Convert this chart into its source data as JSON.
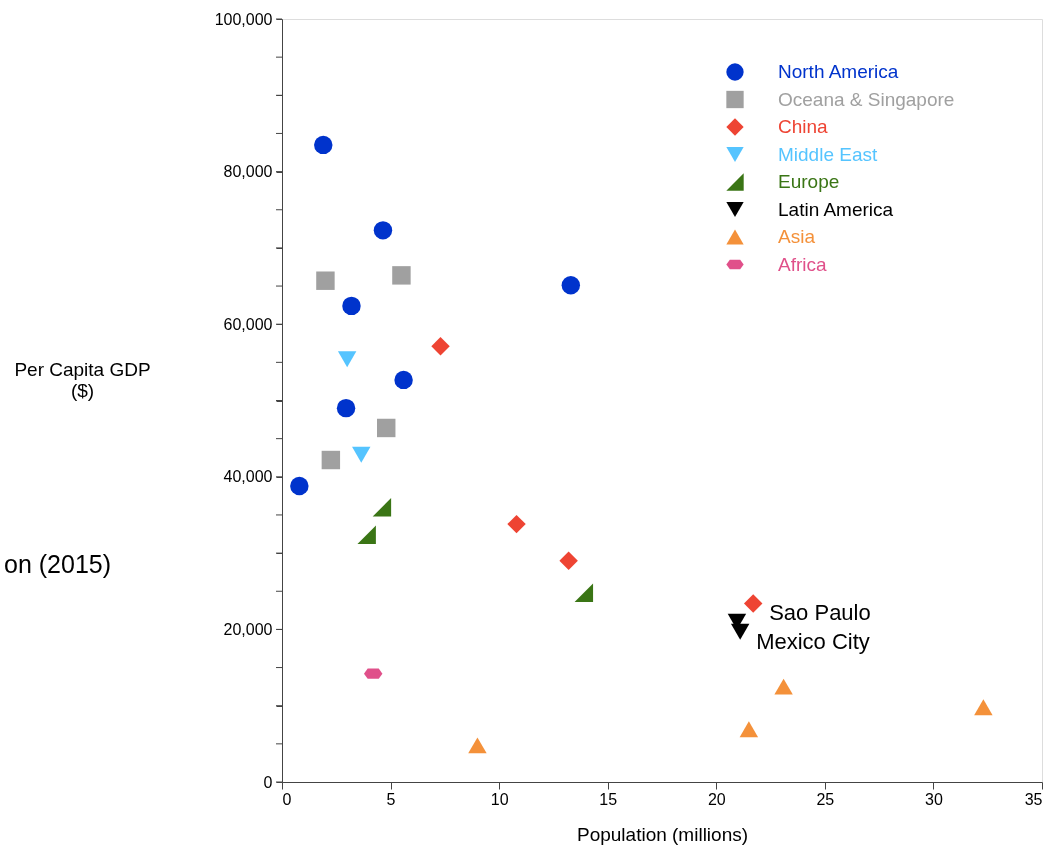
{
  "chart_data": {
    "type": "scatter",
    "xlabel": "Population (millions)",
    "ylabel": "Per Capita GDP ($)",
    "xlim": [
      0,
      35
    ],
    "xticks": [
      0,
      5,
      10,
      15,
      20,
      25,
      30,
      35
    ],
    "ylim": [
      0,
      100000
    ],
    "yticks": [
      {
        "value": 0,
        "label": "0"
      },
      {
        "value": 5000,
        "label": null
      },
      {
        "value": 10000,
        "label": null
      },
      {
        "value": 15000,
        "label": null
      },
      {
        "value": 20000,
        "label": "20,000"
      },
      {
        "value": 25000,
        "label": null
      },
      {
        "value": 30000,
        "label": null
      },
      {
        "value": 35000,
        "label": null
      },
      {
        "value": 40000,
        "label": "40,000"
      },
      {
        "value": 45000,
        "label": null
      },
      {
        "value": 50000,
        "label": null
      },
      {
        "value": 55000,
        "label": null
      },
      {
        "value": 60000,
        "label": "60,000"
      },
      {
        "value": 65000,
        "label": null
      },
      {
        "value": 70000,
        "label": null
      },
      {
        "value": 75000,
        "label": null
      },
      {
        "value": 80000,
        "label": "80,000"
      },
      {
        "value": 85000,
        "label": null
      },
      {
        "value": 90000,
        "label": null
      },
      {
        "value": 95000,
        "label": null
      },
      {
        "value": 100000,
        "label": "100,000"
      }
    ],
    "grid": false,
    "legend": "top right",
    "series": [
      {
        "name": "North America",
        "color": "#0033cc",
        "marker": "circle",
        "x": [
          1.9,
          4.65,
          3.2,
          13.3,
          5.6,
          2.95,
          0.8
        ],
        "values": [
          83500,
          72300,
          62400,
          65100,
          52700,
          49000,
          38800
        ]
      },
      {
        "name": "Oceana & Singapore",
        "color": "#a0a0a0",
        "marker": "square",
        "x": [
          2.0,
          5.5,
          4.8,
          2.25
        ],
        "values": [
          65700,
          66400,
          46400,
          42200
        ]
      },
      {
        "name": "China",
        "color": "#ee4433",
        "marker": "diamond",
        "x": [
          7.3,
          10.8,
          13.2,
          21.7
        ],
        "values": [
          57100,
          33800,
          29000,
          23400
        ]
      },
      {
        "name": "Middle East",
        "color": "#55c4ff",
        "marker": "triangle-down",
        "x": [
          3.0,
          3.65
        ],
        "values": [
          55400,
          42900
        ]
      },
      {
        "name": "Europe",
        "color": "#3a7515",
        "marker": "triangle",
        "x": [
          4.6,
          3.9,
          13.9
        ],
        "values": [
          36000,
          32400,
          24800
        ]
      },
      {
        "name": "Latin America",
        "color": "#000000",
        "marker": "triangle-down",
        "x": [
          20.95,
          21.1
        ],
        "values": [
          21000,
          19700
        ]
      },
      {
        "name": "Asia",
        "color": "#f4913a",
        "marker": "triangle-up",
        "x": [
          9.0,
          21.5,
          23.1,
          32.3
        ],
        "values": [
          4800,
          6900,
          12500,
          9800
        ]
      },
      {
        "name": "Africa",
        "color": "#e0508a",
        "x": [
          4.2
        ],
        "values": [
          14200
        ]
      }
    ],
    "annotations": [
      {
        "text": "Sao Paulo",
        "x": 21.7,
        "y": 23400
      },
      {
        "text": "Mexico City",
        "x": 21.1,
        "y": 19700
      },
      "on (2015)"
    ]
  }
}
